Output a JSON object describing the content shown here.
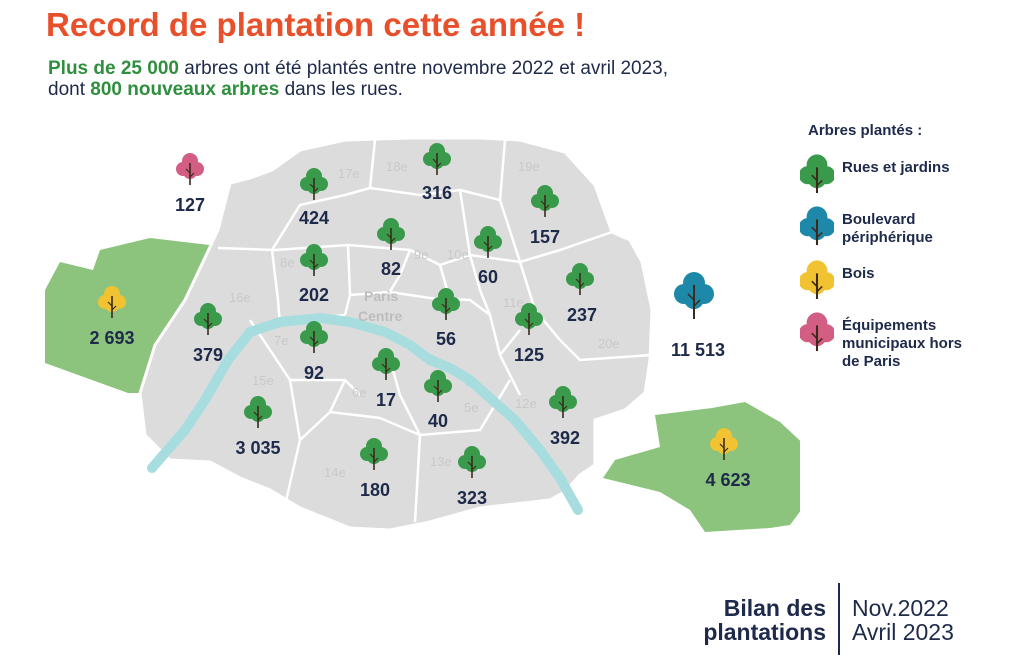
{
  "title": "Record de plantation cette année !",
  "subtitle": {
    "l1_hl": "Plus de 25 000",
    "l1_rest": " arbres ont été plantés entre novembre 2022 et avril 2023,",
    "l2_pre": "dont ",
    "l2_hl": "800 nouveaux arbres",
    "l2_rest": " dans les rues."
  },
  "colors": {
    "rues": "#3a9a4b",
    "peripherique": "#1e88a8",
    "bois": "#f1c232",
    "municipaux": "#d35e84",
    "city": "#dcdcdc",
    "woods": "#8cc47e",
    "seine": "#a8dde0"
  },
  "legend": {
    "title": "Arbres plantés :",
    "items": [
      {
        "label": "Rues et jardins",
        "type": "rues",
        "icon": "tree-icon"
      },
      {
        "label": "Boulevard périphérique",
        "type": "peripherique",
        "icon": "tree-icon"
      },
      {
        "label": "Bois",
        "type": "bois",
        "icon": "tree-icon"
      },
      {
        "label": "Équipements municipaux hors de Paris",
        "type": "municipaux",
        "icon": "tree-icon"
      }
    ]
  },
  "map": {
    "paris_centre": "Paris Centre",
    "arrondissements": [
      {
        "label": "5e",
        "count": "40"
      },
      {
        "label": "6e",
        "count": "17"
      },
      {
        "label": "7e",
        "count": "92"
      },
      {
        "label": "8e",
        "count": "202"
      },
      {
        "label": "9e",
        "count": "82"
      },
      {
        "label": "10e",
        "count": "60"
      },
      {
        "label": "11e",
        "count": "125"
      },
      {
        "label": "12e",
        "count": "392"
      },
      {
        "label": "13e",
        "count": "323"
      },
      {
        "label": "14e",
        "count": "180"
      },
      {
        "label": "15e",
        "count": "3 035"
      },
      {
        "label": "16e",
        "count": "379"
      },
      {
        "label": "17e",
        "count": "424"
      },
      {
        "label": "18e",
        "count": "316"
      },
      {
        "label": "19e",
        "count": "157"
      },
      {
        "label": "20e",
        "count": "237"
      }
    ],
    "paris_centre_count": "56",
    "other": [
      {
        "name": "municipaux",
        "count": "127"
      },
      {
        "name": "bois-boulogne",
        "count": "2 693"
      },
      {
        "name": "peripherique",
        "count": "11 513"
      },
      {
        "name": "bois-vincennes",
        "count": "4 623"
      }
    ]
  },
  "footer": {
    "bilan_l1": "Bilan des",
    "bilan_l2": "plantations",
    "period_l1": "Nov.2022",
    "period_l2": "Avril 2023"
  }
}
